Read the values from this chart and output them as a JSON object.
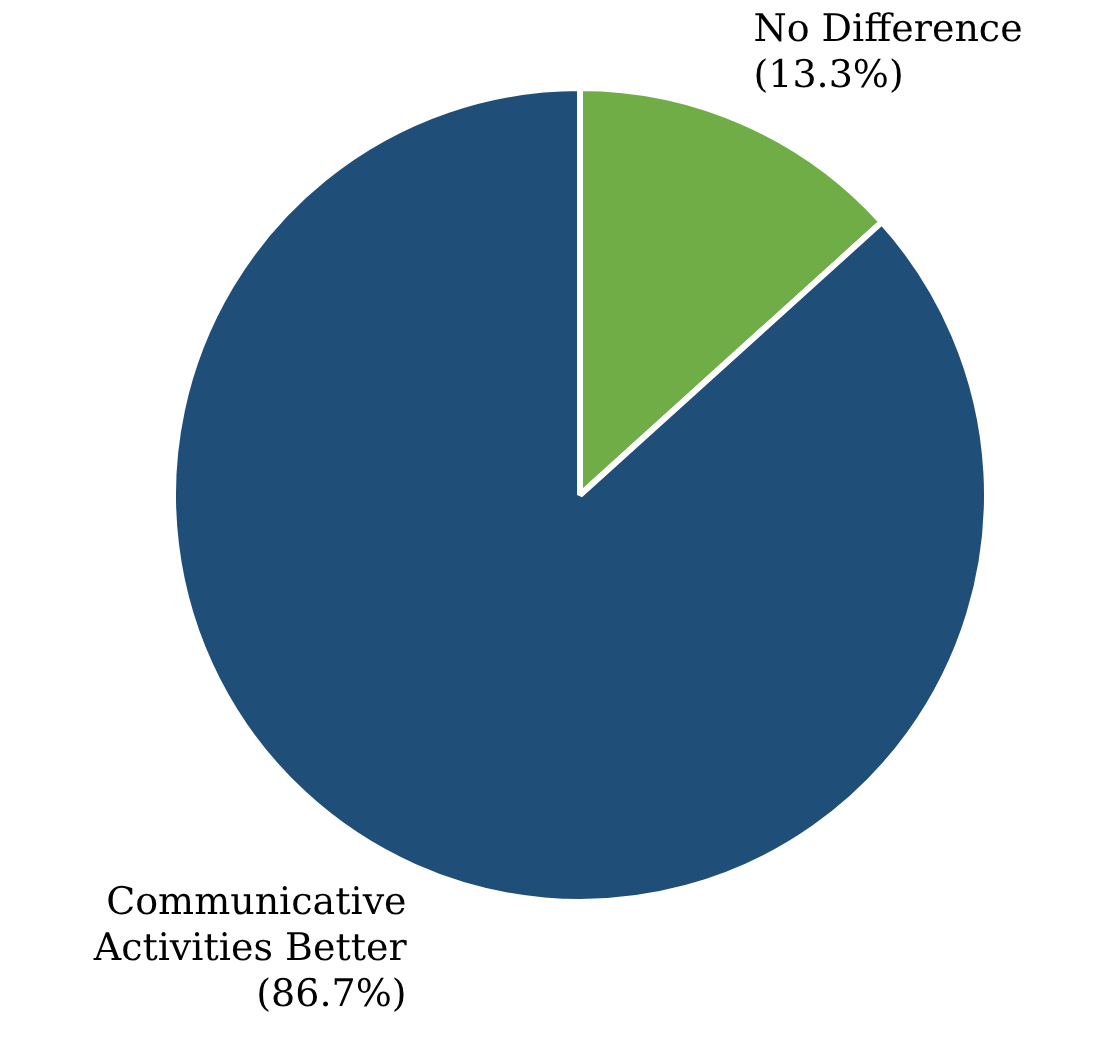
{
  "chart_data": {
    "type": "pie",
    "categories": [
      "No Difference",
      "Communicative Activities Better"
    ],
    "values": [
      13.3,
      86.7
    ],
    "colors": [
      "#70ad47",
      "#1f4e79"
    ],
    "value_labels": [
      "(13.3%)",
      "(86.7%)"
    ],
    "legend": false
  }
}
